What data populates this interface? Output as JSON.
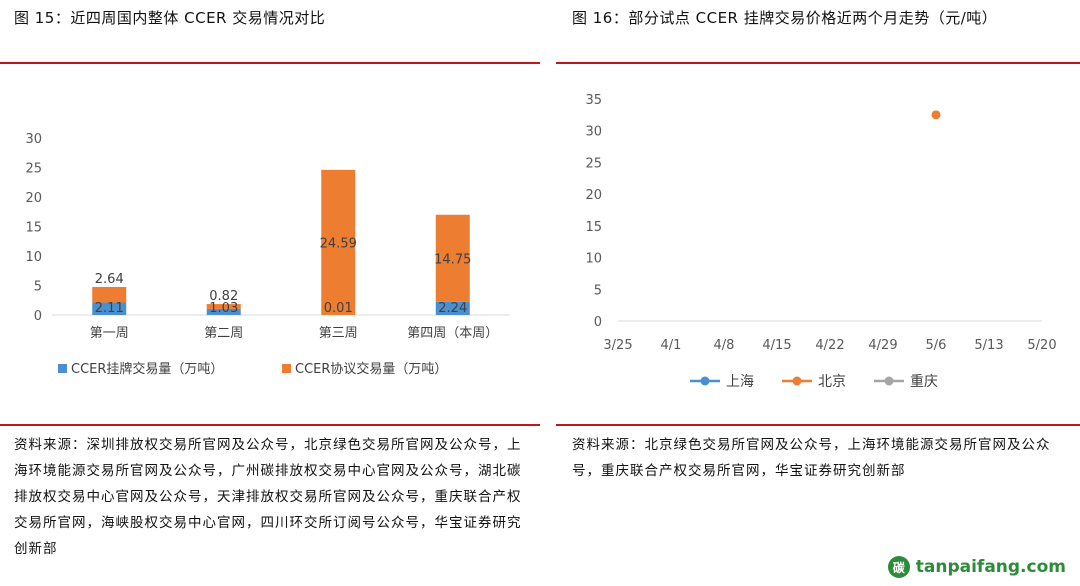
{
  "left": {
    "title": "图 15：近四周国内整体 CCER 交易情况对比",
    "source": "资料来源：深圳排放权交易所官网及公众号，北京绿色交易所官网及公众号，上海环境能源交易所官网及公众号，广州碳排放权交易中心官网及公众号，湖北碳排放权交易中心官网及公众号，天津排放权交易所官网及公众号，重庆联合产权交易所官网，海峡股权交易中心官网，四川环交所订阅号公众号，华宝证券研究创新部"
  },
  "right": {
    "title": "图 16：部分试点 CCER 挂牌交易价格近两个月走势（元/吨）",
    "source": "资料来源：北京绿色交易所官网及公众号，上海环境能源交易所官网及公众号，重庆联合产权交易所官网，华宝证券研究创新部"
  },
  "watermark": "tanpaifang.com",
  "watermark_logo": "碳",
  "chart_data": [
    {
      "type": "bar",
      "stacked": true,
      "categories": [
        "第一周",
        "第二周",
        "第三周",
        "第四周（本周）"
      ],
      "series": [
        {
          "name": "CCER挂牌交易量（万吨）",
          "color": "#4a8fd0",
          "values": [
            2.11,
            1.03,
            0.01,
            2.24
          ],
          "labels": [
            "2.11",
            "1.03",
            "0.01",
            "2.24"
          ]
        },
        {
          "name": "CCER协议交易量（万吨）",
          "color": "#ed7d31",
          "values": [
            2.64,
            0.82,
            24.59,
            14.75
          ],
          "labels": [
            "2.64",
            "0.82",
            "24.59",
            "14.75"
          ]
        }
      ],
      "ylim": [
        0,
        30
      ],
      "yticks": [
        0,
        5,
        10,
        15,
        20,
        25,
        30
      ],
      "legend_position": "bottom",
      "grid": false
    },
    {
      "type": "line",
      "x_ticks": [
        "3/25",
        "4/1",
        "4/8",
        "4/15",
        "4/22",
        "4/29",
        "5/6",
        "5/13",
        "5/20"
      ],
      "series": [
        {
          "name": "上海",
          "color": "#4a8fd0",
          "points": []
        },
        {
          "name": "北京",
          "color": "#ed7d31",
          "points": [
            {
              "x": "5/6",
              "y": 32.5
            }
          ]
        },
        {
          "name": "重庆",
          "color": "#a5a5a5",
          "points": []
        }
      ],
      "ylim": [
        0,
        35
      ],
      "yticks": [
        0,
        5,
        10,
        15,
        20,
        25,
        30,
        35
      ],
      "legend_position": "bottom",
      "grid": false
    }
  ]
}
